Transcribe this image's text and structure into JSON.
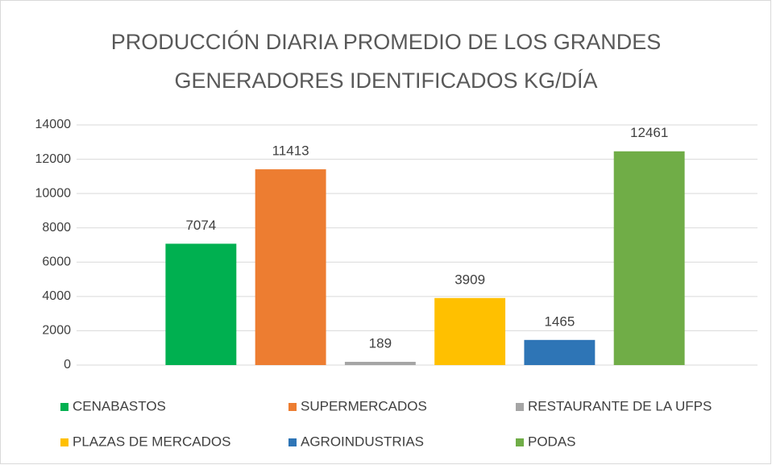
{
  "chart_data": {
    "type": "bar",
    "title": "PRODUCCIÓN DIARIA PROMEDIO DE LOS GRANDES GENERADORES IDENTIFICADOS KG/DÍA",
    "categories": [
      null
    ],
    "series": [
      {
        "name": "CENABASTOS",
        "color": "#00b050",
        "values": [
          7074
        ]
      },
      {
        "name": "SUPERMERCADOS",
        "color": "#ed7d31",
        "values": [
          11413
        ]
      },
      {
        "name": "RESTAURANTE DE LA UFPS",
        "color": "#a5a5a5",
        "values": [
          189
        ]
      },
      {
        "name": "PLAZAS DE MERCADOS",
        "color": "#ffc000",
        "values": [
          3909
        ]
      },
      {
        "name": "AGROINDUSTRIAS",
        "color": "#2e75b6",
        "values": [
          1465
        ]
      },
      {
        "name": "PODAS",
        "color": "#70ad47",
        "values": [
          12461
        ]
      }
    ],
    "ylim": [
      0,
      14000
    ],
    "yticks": [
      0,
      2000,
      4000,
      6000,
      8000,
      10000,
      12000,
      14000
    ],
    "grid": true,
    "legend": "bottom"
  }
}
